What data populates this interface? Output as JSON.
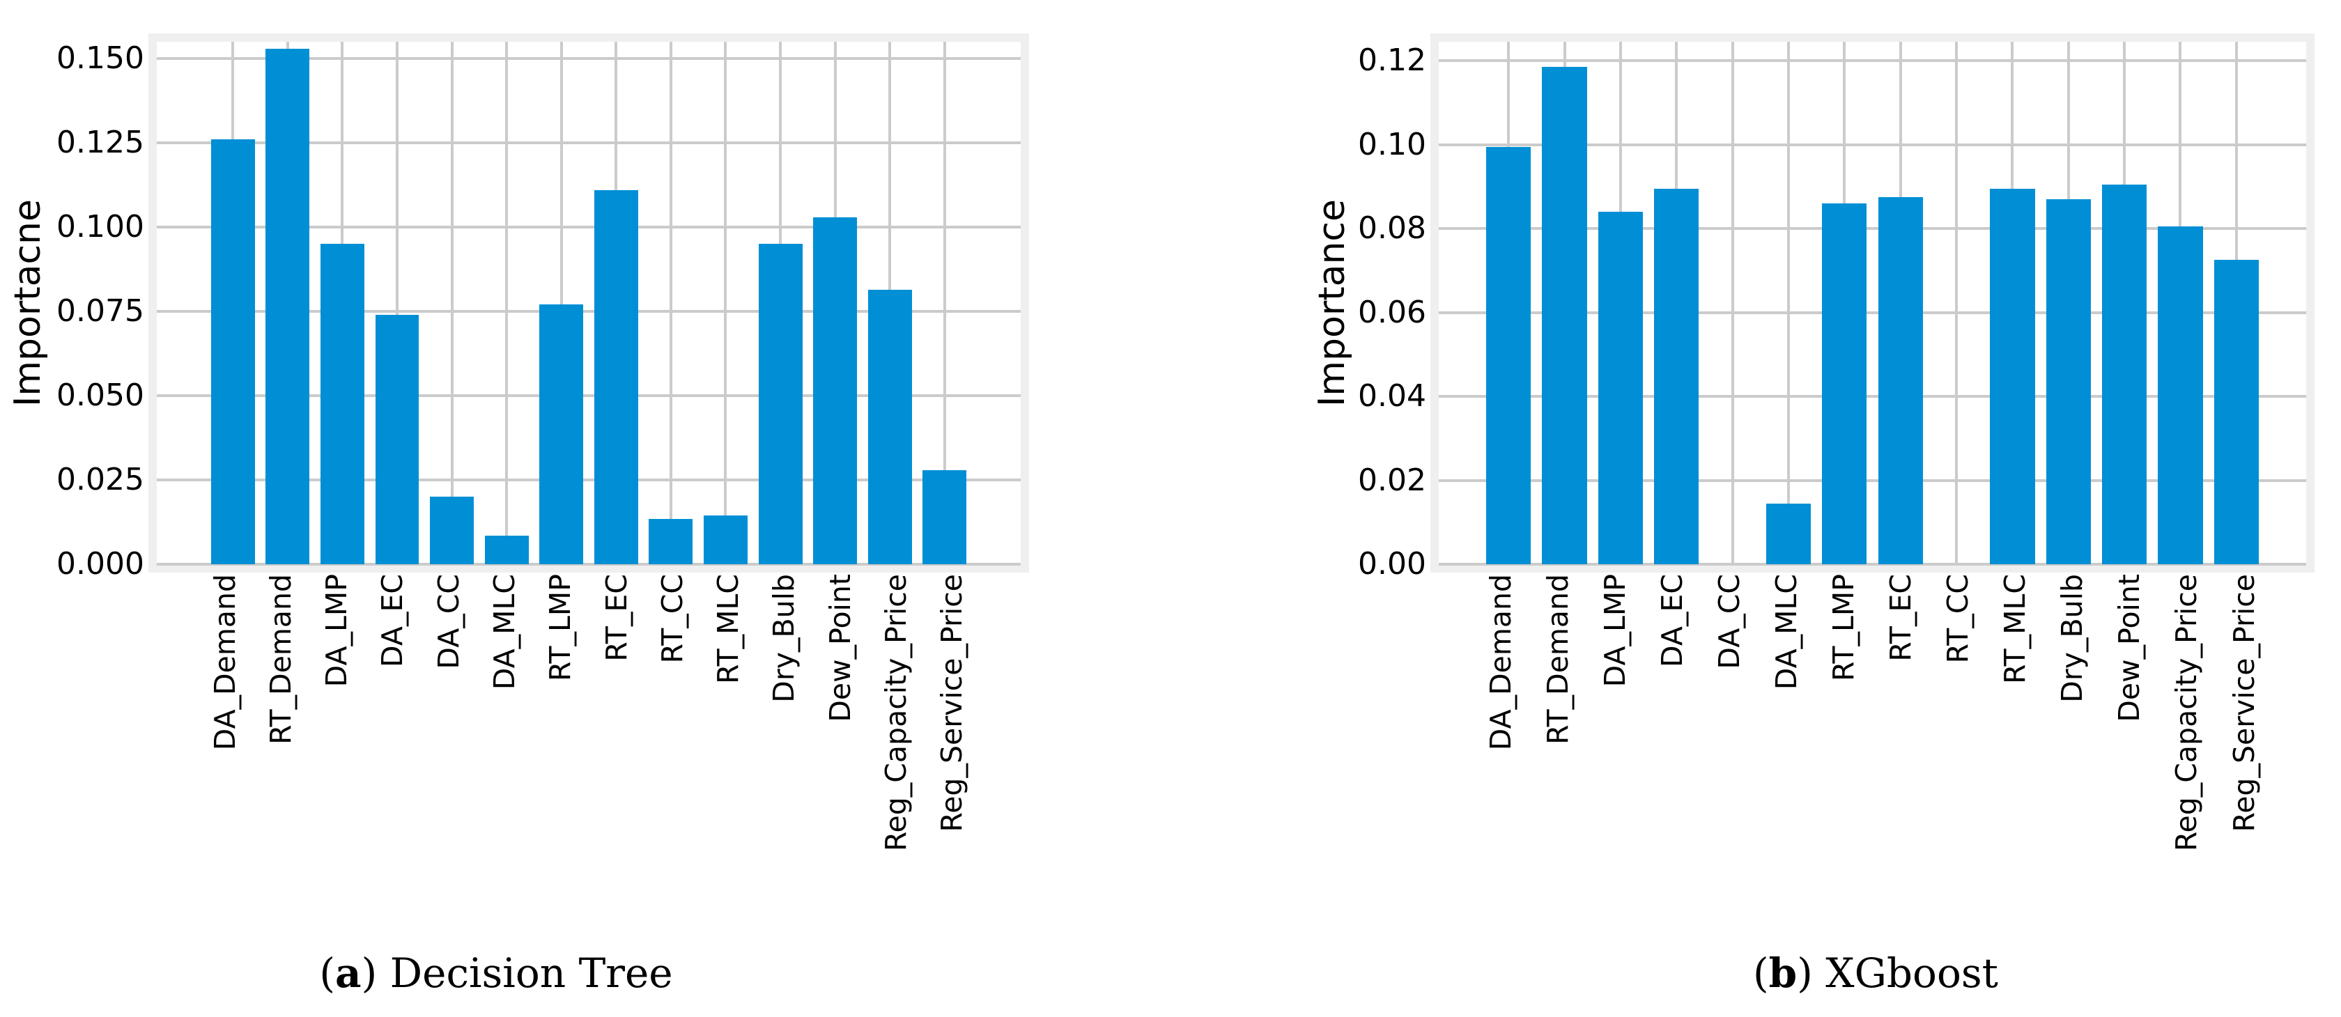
{
  "colors": {
    "bar": "#008fd5",
    "grid": "#cbcbcb",
    "frame": "#efefef",
    "text": "#000000"
  },
  "chart_data": [
    {
      "type": "bar",
      "caption": {
        "open": "(",
        "letter": "a",
        "close": ") ",
        "text": "Decision Tree"
      },
      "ylabel": "Importacne",
      "xlabel": "",
      "categories": [
        "DA_Demand",
        "RT_Demand",
        "DA_LMP",
        "DA_EC",
        "DA_CC",
        "DA_MLC",
        "RT_LMP",
        "RT_EC",
        "RT_CC",
        "RT_MLC",
        "Dry_Bulb",
        "Dew_Point",
        "Reg_Capacity_Price",
        "Reg_Service_Price"
      ],
      "values": [
        0.126,
        0.153,
        0.095,
        0.074,
        0.02,
        0.0085,
        0.077,
        0.111,
        0.0135,
        0.0145,
        0.095,
        0.103,
        0.0815,
        0.028
      ],
      "ylim": [
        0,
        0.155
      ],
      "yticks": [
        0,
        0.025,
        0.05,
        0.075,
        0.1,
        0.125,
        0.15
      ],
      "ytick_labels": [
        "0.000",
        "0.025",
        "0.050",
        "0.075",
        "0.100",
        "0.125",
        "0.150"
      ],
      "grid": true,
      "legend": "none"
    },
    {
      "type": "bar",
      "caption": {
        "open": "(",
        "letter": "b",
        "close": ") ",
        "text": "XGboost"
      },
      "ylabel": "Importance",
      "xlabel": "",
      "categories": [
        "DA_Demand",
        "RT_Demand",
        "DA_LMP",
        "DA_EC",
        "DA_CC",
        "DA_MLC",
        "RT_LMP",
        "RT_EC",
        "RT_CC",
        "RT_MLC",
        "Dry_Bulb",
        "Dew_Point",
        "Reg_Capacity_Price",
        "Reg_Service_Price"
      ],
      "values": [
        0.0995,
        0.1185,
        0.084,
        0.0895,
        0,
        0.0145,
        0.086,
        0.0875,
        0,
        0.0895,
        0.087,
        0.0905,
        0.0805,
        0.0725
      ],
      "ylim": [
        0,
        0.1245
      ],
      "yticks": [
        0,
        0.02,
        0.04,
        0.06,
        0.08,
        0.1,
        0.12
      ],
      "ytick_labels": [
        "0.00",
        "0.02",
        "0.04",
        "0.06",
        "0.08",
        "0.10",
        "0.12"
      ],
      "grid": true,
      "legend": "none"
    }
  ]
}
